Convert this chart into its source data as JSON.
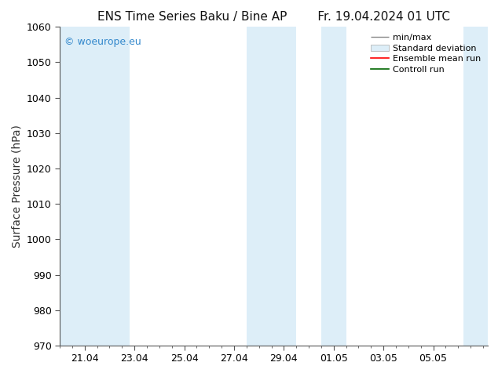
{
  "title_left": "ENS Time Series Baku / Bine AP",
  "title_right": "Fr. 19.04.2024 01 UTC",
  "ylabel": "Surface Pressure (hPa)",
  "ylim": [
    970,
    1060
  ],
  "yticks": [
    970,
    980,
    990,
    1000,
    1010,
    1020,
    1030,
    1040,
    1050,
    1060
  ],
  "xlim": [
    19.0,
    36.2
  ],
  "xtick_positions": [
    20.0,
    22.0,
    24.0,
    26.0,
    28.0,
    30.0,
    32.0,
    34.0
  ],
  "xtick_labels": [
    "21.04",
    "23.04",
    "25.04",
    "27.04",
    "29.04",
    "01.05",
    "03.05",
    "05.05"
  ],
  "background_color": "#ffffff",
  "shaded_bands": [
    {
      "x_start": 19.0,
      "x_end": 21.2,
      "color": "#ddeef8"
    },
    {
      "x_start": 21.2,
      "x_end": 21.8,
      "color": "#ddeef8"
    },
    {
      "x_start": 26.5,
      "x_end": 27.5,
      "color": "#ddeef8"
    },
    {
      "x_start": 27.5,
      "x_end": 28.5,
      "color": "#ddeef8"
    },
    {
      "x_start": 29.5,
      "x_end": 30.5,
      "color": "#ddeef8"
    },
    {
      "x_start": 35.2,
      "x_end": 36.2,
      "color": "#ddeef8"
    }
  ],
  "watermark_text": "© woeurope.eu",
  "watermark_color": "#3388cc",
  "legend_items": [
    {
      "label": "min/max",
      "color": "#888888",
      "type": "errorbar"
    },
    {
      "label": "Standard deviation",
      "color": "#ddeef8",
      "type": "band"
    },
    {
      "label": "Ensemble mean run",
      "color": "#ff0000",
      "type": "line"
    },
    {
      "label": "Controll run",
      "color": "#006600",
      "type": "line"
    }
  ],
  "title_fontsize": 11,
  "tick_fontsize": 9,
  "ylabel_fontsize": 10,
  "watermark_fontsize": 9,
  "legend_fontsize": 8
}
